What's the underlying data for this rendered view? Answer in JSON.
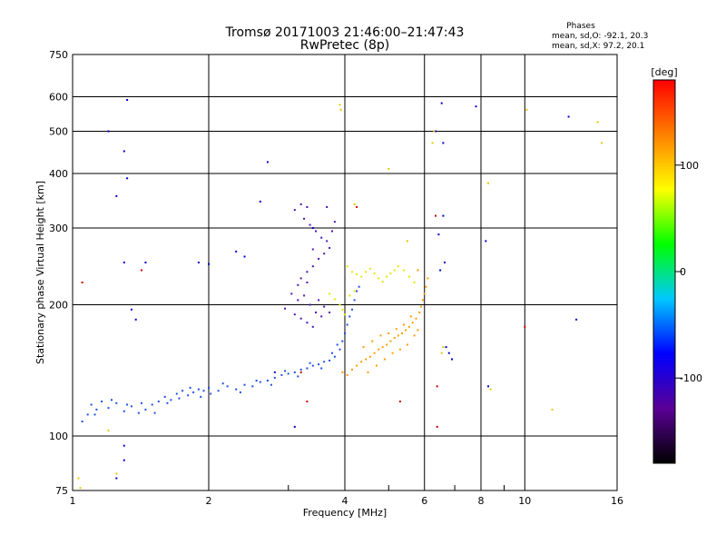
{
  "chart_data": {
    "type": "scatter",
    "title": "Tromsø 20171003 21:46:00–21:47:43",
    "subtitle": "RwPretec (8p)",
    "xlabel": "Frequency [MHz]",
    "ylabel": "Stationary phase Virtual Height [km]",
    "x_scale": "log",
    "y_scale": "log",
    "xlim": [
      1,
      16
    ],
    "ylim": [
      75,
      750
    ],
    "x_ticks": [
      1,
      2,
      4,
      6,
      8,
      10,
      16
    ],
    "y_ticks": [
      75,
      100,
      200,
      300,
      400,
      500,
      600,
      750
    ],
    "grid": true,
    "legend": {
      "title": "Phases",
      "line1": "mean, sd,O: -92.1, 20.3",
      "line2": "mean, sd,X:  97.2, 20.1"
    },
    "colorbar": {
      "label": "[deg]",
      "range": [
        -180,
        180
      ],
      "ticks": [
        100,
        0,
        -100
      ],
      "colors": [
        "#000000",
        "#5a0096",
        "#0000ff",
        "#00c8ff",
        "#00ff00",
        "#ffff00",
        "#ff8000",
        "#ff0000"
      ]
    },
    "series": [
      {
        "mode": "O",
        "color": "#1f4fe6",
        "points": [
          [
            1.05,
            108
          ],
          [
            1.08,
            112
          ],
          [
            1.1,
            118
          ],
          [
            1.13,
            115
          ],
          [
            1.16,
            120
          ],
          [
            1.2,
            116
          ],
          [
            1.25,
            119
          ],
          [
            1.3,
            114
          ],
          [
            1.35,
            117
          ],
          [
            1.4,
            113
          ],
          [
            1.45,
            115
          ],
          [
            1.5,
            118
          ],
          [
            1.55,
            120
          ],
          [
            1.6,
            123
          ],
          [
            1.65,
            121
          ],
          [
            1.7,
            125
          ],
          [
            1.75,
            127
          ],
          [
            1.8,
            124
          ],
          [
            1.85,
            126
          ],
          [
            1.9,
            128
          ],
          [
            1.95,
            127
          ],
          [
            2.0,
            129
          ],
          [
            2.1,
            127
          ],
          [
            2.2,
            130
          ],
          [
            2.3,
            128
          ],
          [
            2.4,
            131
          ],
          [
            2.5,
            130
          ],
          [
            2.6,
            133
          ],
          [
            2.7,
            134
          ],
          [
            2.8,
            136
          ],
          [
            2.9,
            138
          ],
          [
            3.0,
            139
          ],
          [
            3.1,
            140
          ],
          [
            3.2,
            142
          ],
          [
            3.3,
            143
          ],
          [
            3.4,
            145
          ],
          [
            3.5,
            146
          ],
          [
            3.6,
            148
          ],
          [
            3.7,
            149
          ],
          [
            3.8,
            152
          ],
          [
            3.9,
            158
          ],
          [
            3.95,
            165
          ],
          [
            4.0,
            172
          ],
          [
            4.05,
            180
          ],
          [
            4.1,
            188
          ],
          [
            4.15,
            195
          ],
          [
            4.2,
            205
          ],
          [
            4.25,
            215
          ],
          [
            4.3,
            220
          ],
          [
            1.12,
            112
          ],
          [
            1.22,
            121
          ],
          [
            1.32,
            118
          ],
          [
            1.42,
            119
          ],
          [
            1.52,
            113
          ],
          [
            1.62,
            119
          ],
          [
            1.72,
            122
          ],
          [
            1.82,
            129
          ],
          [
            1.92,
            123
          ],
          [
            2.02,
            125
          ],
          [
            2.15,
            132
          ],
          [
            2.35,
            126
          ],
          [
            2.55,
            134
          ],
          [
            2.75,
            131
          ],
          [
            2.95,
            141
          ],
          [
            3.15,
            137
          ],
          [
            3.35,
            147
          ],
          [
            3.55,
            143
          ],
          [
            3.75,
            155
          ],
          [
            3.85,
            162
          ]
        ]
      },
      {
        "mode": "O-upper",
        "color": "#4b14b4",
        "points": [
          [
            3.1,
            330
          ],
          [
            3.2,
            340
          ],
          [
            3.3,
            335
          ],
          [
            3.25,
            315
          ],
          [
            3.35,
            305
          ],
          [
            3.45,
            295
          ],
          [
            3.55,
            285
          ],
          [
            3.65,
            280
          ],
          [
            3.7,
            270
          ],
          [
            3.6,
            262
          ],
          [
            3.5,
            255
          ],
          [
            3.4,
            245
          ],
          [
            3.3,
            238
          ],
          [
            3.2,
            230
          ],
          [
            3.15,
            222
          ],
          [
            3.25,
            210
          ],
          [
            3.35,
            200
          ],
          [
            3.45,
            192
          ],
          [
            3.55,
            188
          ],
          [
            3.05,
            212
          ],
          [
            2.95,
            196
          ],
          [
            3.1,
            190
          ],
          [
            3.2,
            186
          ],
          [
            3.3,
            182
          ],
          [
            3.4,
            178
          ],
          [
            3.75,
            295
          ],
          [
            3.8,
            310
          ],
          [
            3.65,
            335
          ],
          [
            3.4,
            268
          ],
          [
            3.3,
            225
          ],
          [
            3.15,
            205
          ],
          [
            3.5,
            205
          ],
          [
            3.6,
            198
          ],
          [
            3.7,
            192
          ]
        ]
      },
      {
        "mode": "X",
        "color": "#ff9c00",
        "points": [
          [
            3.95,
            140
          ],
          [
            4.05,
            138
          ],
          [
            4.15,
            142
          ],
          [
            4.25,
            145
          ],
          [
            4.35,
            148
          ],
          [
            4.45,
            150
          ],
          [
            4.55,
            152
          ],
          [
            4.65,
            155
          ],
          [
            4.75,
            158
          ],
          [
            4.85,
            160
          ],
          [
            4.95,
            162
          ],
          [
            5.05,
            165
          ],
          [
            5.15,
            168
          ],
          [
            5.25,
            170
          ],
          [
            5.35,
            172
          ],
          [
            5.45,
            175
          ],
          [
            5.55,
            178
          ],
          [
            5.65,
            182
          ],
          [
            5.75,
            186
          ],
          [
            5.85,
            192
          ],
          [
            5.9,
            198
          ],
          [
            5.95,
            205
          ],
          [
            6.0,
            212
          ],
          [
            6.05,
            220
          ],
          [
            4.4,
            160
          ],
          [
            4.6,
            165
          ],
          [
            4.8,
            170
          ],
          [
            5.0,
            172
          ],
          [
            5.2,
            176
          ],
          [
            5.4,
            180
          ],
          [
            5.6,
            188
          ],
          [
            4.5,
            140
          ],
          [
            4.7,
            145
          ],
          [
            4.9,
            150
          ],
          [
            5.1,
            155
          ],
          [
            5.3,
            158
          ],
          [
            5.5,
            162
          ],
          [
            5.7,
            170
          ],
          [
            5.8,
            175
          ],
          [
            6.1,
            230
          ],
          [
            5.8,
            240
          ]
        ]
      },
      {
        "mode": "X-upper",
        "color": "#e6e600",
        "points": [
          [
            4.05,
            245
          ],
          [
            4.15,
            238
          ],
          [
            4.25,
            235
          ],
          [
            4.35,
            232
          ],
          [
            4.45,
            238
          ],
          [
            4.55,
            242
          ],
          [
            4.65,
            236
          ],
          [
            4.75,
            230
          ],
          [
            4.85,
            226
          ],
          [
            4.95,
            232
          ],
          [
            5.05,
            236
          ],
          [
            5.15,
            240
          ],
          [
            5.25,
            245
          ],
          [
            5.4,
            240
          ],
          [
            5.55,
            232
          ],
          [
            5.7,
            225
          ],
          [
            3.7,
            212
          ],
          [
            3.8,
            206
          ],
          [
            3.9,
            200
          ],
          [
            3.95,
            195
          ],
          [
            4.0,
            190
          ],
          [
            4.1,
            210
          ],
          [
            4.2,
            215
          ]
        ]
      },
      {
        "mode": "noise",
        "color": "#0000d2",
        "points": [
          [
            1.32,
            590
          ],
          [
            1.2,
            500
          ],
          [
            1.3,
            450
          ],
          [
            1.25,
            355
          ],
          [
            1.32,
            390
          ],
          [
            1.3,
            250
          ],
          [
            1.35,
            195
          ],
          [
            1.45,
            250
          ],
          [
            1.38,
            185
          ],
          [
            1.25,
            80
          ],
          [
            1.3,
            95
          ],
          [
            1.3,
            88
          ],
          [
            2.7,
            425
          ],
          [
            1.9,
            250
          ],
          [
            2.0,
            248
          ],
          [
            2.3,
            265
          ],
          [
            2.4,
            258
          ],
          [
            6.35,
            500
          ],
          [
            6.55,
            580
          ],
          [
            6.6,
            470
          ],
          [
            6.6,
            320
          ],
          [
            6.45,
            290
          ],
          [
            6.5,
            240
          ],
          [
            6.65,
            250
          ],
          [
            7.8,
            570
          ],
          [
            8.2,
            280
          ],
          [
            8.3,
            130
          ],
          [
            12.5,
            540
          ],
          [
            13.0,
            185
          ],
          [
            6.8,
            155
          ],
          [
            6.7,
            160
          ],
          [
            6.9,
            150
          ],
          [
            3.1,
            105
          ],
          [
            2.8,
            140
          ],
          [
            3.4,
            300
          ],
          [
            2.6,
            345
          ]
        ]
      },
      {
        "mode": "noise-warm",
        "color": "#e6c800",
        "points": [
          [
            3.9,
            575
          ],
          [
            3.92,
            560
          ],
          [
            10.1,
            560
          ],
          [
            14.5,
            525
          ],
          [
            14.8,
            470
          ],
          [
            8.3,
            380
          ],
          [
            6.6,
            160
          ],
          [
            6.55,
            155
          ],
          [
            1.03,
            80
          ],
          [
            1.04,
            76
          ],
          [
            1.2,
            103
          ],
          [
            1.25,
            82
          ],
          [
            4.2,
            340
          ],
          [
            5.0,
            410
          ],
          [
            6.3,
            500
          ],
          [
            6.25,
            470
          ],
          [
            8.4,
            128
          ],
          [
            11.5,
            115
          ],
          [
            5.5,
            280
          ]
        ]
      },
      {
        "mode": "noise-misc",
        "color": "#cc0000",
        "points": [
          [
            1.42,
            240
          ],
          [
            4.25,
            335
          ],
          [
            6.35,
            320
          ],
          [
            6.4,
            130
          ],
          [
            1.05,
            225
          ],
          [
            10.0,
            178
          ],
          [
            6.4,
            105
          ],
          [
            3.2,
            140
          ],
          [
            3.3,
            120
          ],
          [
            5.3,
            120
          ]
        ]
      }
    ]
  }
}
